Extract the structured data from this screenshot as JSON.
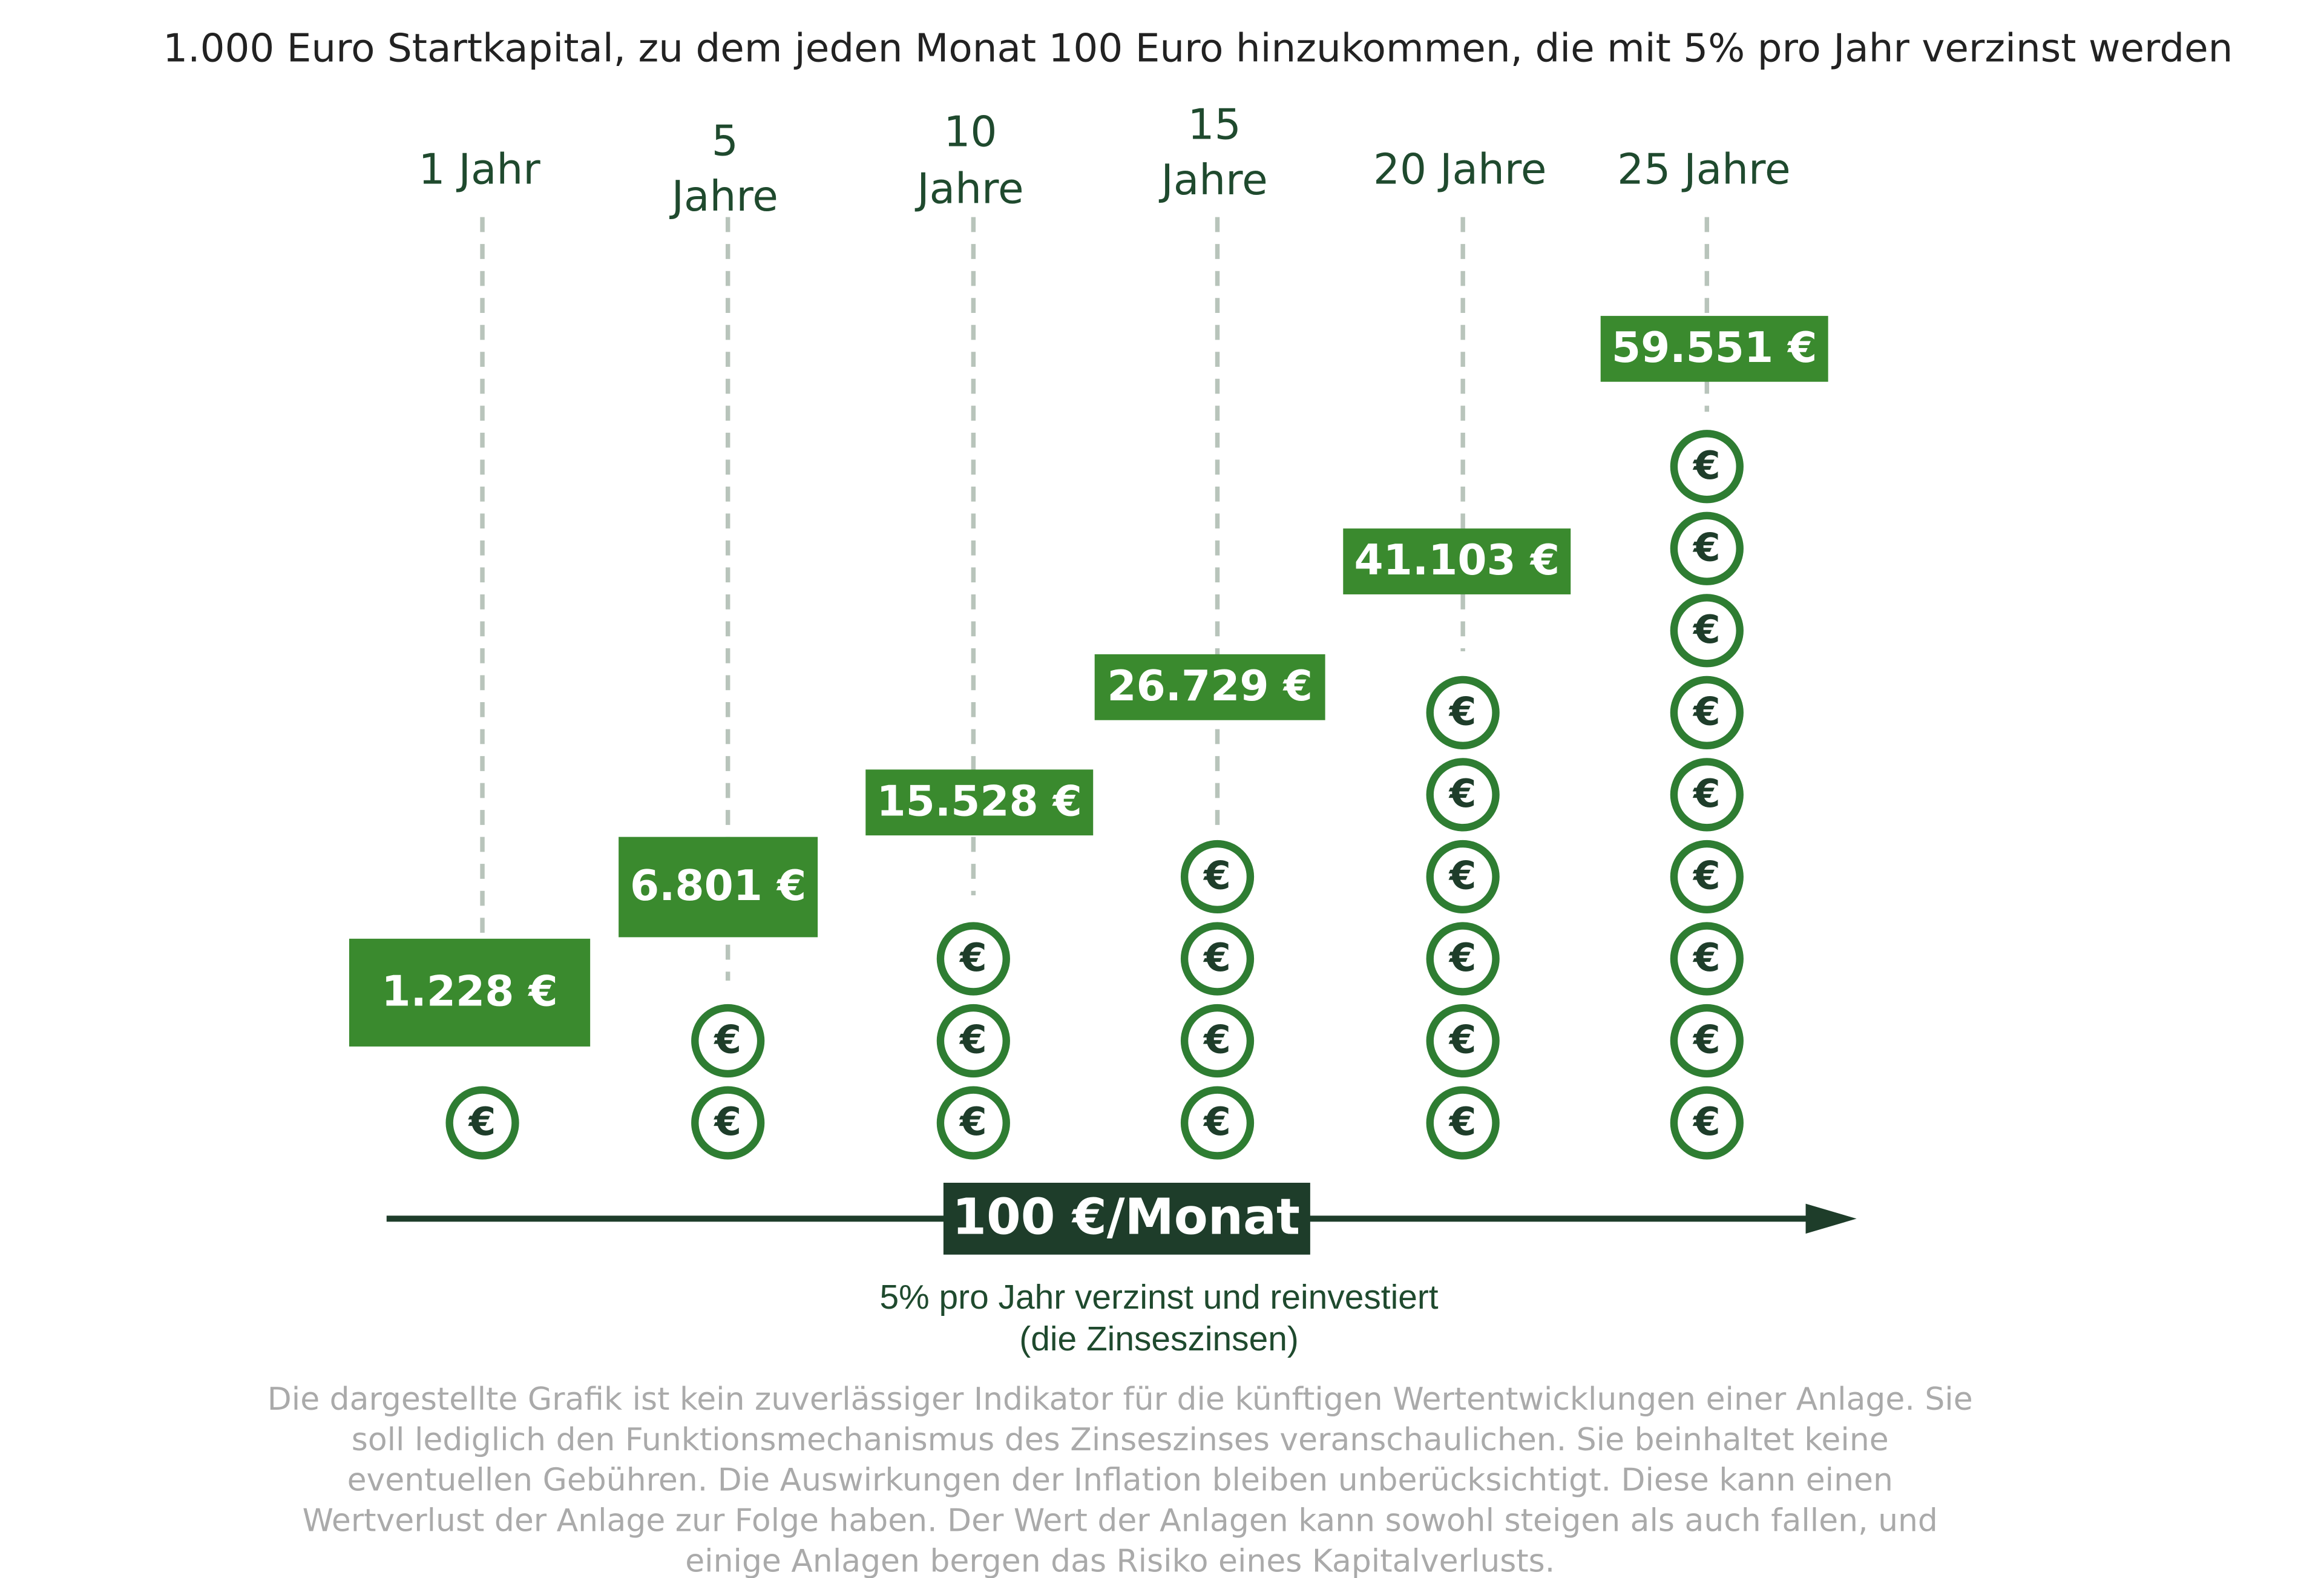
{
  "title": "1.000 Euro Startkapital, zu dem jeden Monat 100 Euro hinzukommen, die mit 5% pro Jahr verzinst werden",
  "columns": [
    {
      "label": [
        "1 Jahr"
      ],
      "value": "1.228 €"
    },
    {
      "label": [
        "5",
        "Jahre"
      ],
      "value": "6.801 €"
    },
    {
      "label": [
        "10",
        "Jahre"
      ],
      "value": "15.528 €"
    },
    {
      "label": [
        "15",
        "Jahre"
      ],
      "value": "26.729 €"
    },
    {
      "label": [
        "20 Jahre"
      ],
      "value": "41.103 €"
    },
    {
      "label": [
        "25 Jahre"
      ],
      "value": "59.551 €"
    }
  ],
  "coin_symbol": "€",
  "arrow_label": "100 €/Monat",
  "caption": [
    "5% pro Jahr verzinst und reinvestiert",
    "(die Zinseszinsen)"
  ],
  "disclaimer": [
    "Die dargestellte Grafik ist kein zuverlässiger Indikator für die künftigen Wertentwicklungen einer Anlage. Sie",
    "soll lediglich den Funktionsmechanismus des Zinseszinses veranschaulichen. Sie beinhaltet keine",
    "eventuellen Gebühren. Die Auswirkungen der Inflation bleiben unberücksichtigt. Diese kann einen",
    "Wertverlust der Anlage zur Folge haben. Der Wert der Anlagen kann sowohl steigen als auch fallen, und",
    "einige Anlagen bergen das Risiko eines Kapitalverlusts."
  ]
}
